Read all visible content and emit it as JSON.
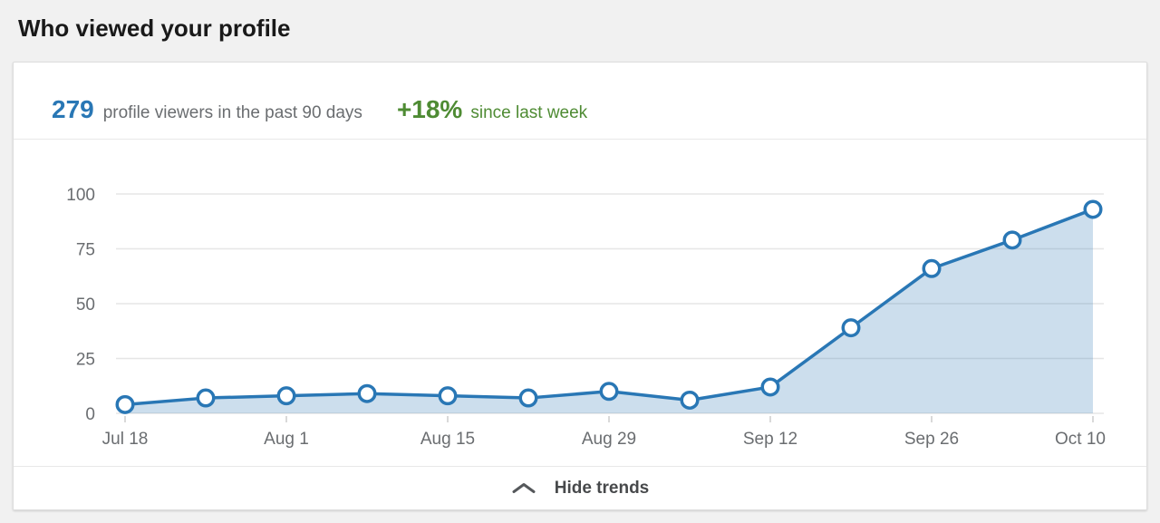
{
  "page": {
    "title": "Who viewed your profile"
  },
  "card": {
    "stats": {
      "count": "279",
      "count_label": "profile viewers in the past 90 days",
      "delta": "+18%",
      "delta_label": "since last week"
    },
    "footer": {
      "label": "Hide trends",
      "icon": "chevron-up-icon"
    }
  },
  "colors": {
    "accent_blue": "#2977b5",
    "positive_green": "#4e8b33",
    "axis_text_gray": "#6a6d70",
    "grid_gray": "#e6e6e6",
    "tick_gray": "#cccccc",
    "footer_text": "#47494b"
  },
  "chart_data": {
    "type": "area",
    "title": "",
    "xlabel": "",
    "ylabel": "",
    "values": [
      4,
      7,
      8,
      9,
      8,
      7,
      10,
      6,
      12,
      39,
      66,
      79,
      93
    ],
    "x_tick_labels": [
      "Jul 18",
      "Aug 1",
      "Aug 15",
      "Aug 29",
      "Sep 12",
      "Sep 26",
      "Oct 10"
    ],
    "x_tick_indices": [
      0,
      2,
      4,
      6,
      8,
      10,
      12
    ],
    "y_ticks": [
      0,
      25,
      50,
      75,
      100
    ],
    "ylim": [
      0,
      100
    ],
    "grid": "horizontal",
    "legend": "none",
    "line_color": "#2977b5",
    "point_fill": "#ffffff",
    "area_opacity": 0.24
  }
}
